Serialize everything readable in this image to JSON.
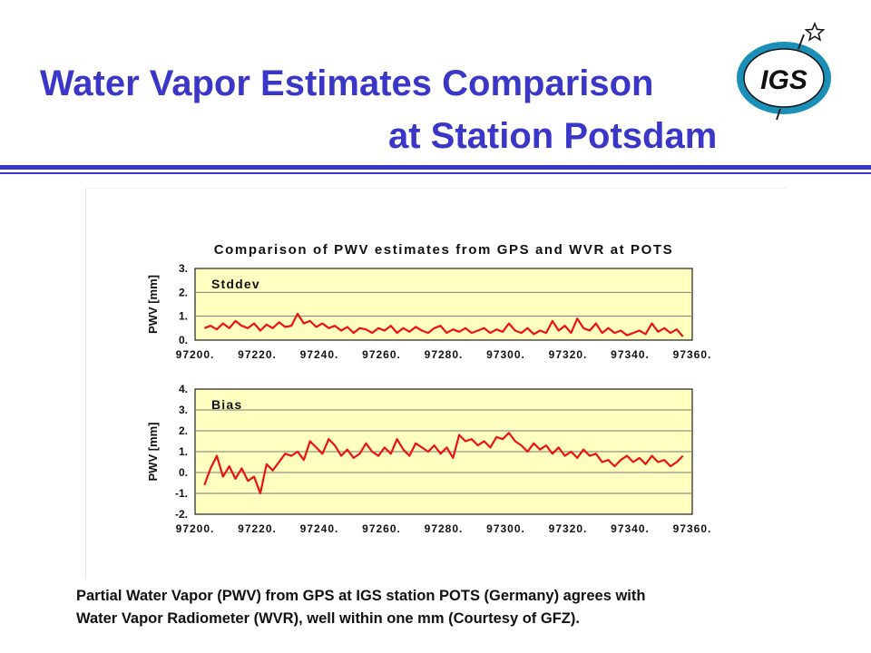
{
  "slide": {
    "title_line1": "Water Vapor Estimates Comparison",
    "title_line2": "at Station Potsdam",
    "logo_text": "IGS",
    "caption_line1": "Partial Water Vapor (PWV) from GPS at IGS station POTS (Germany) agrees with",
    "caption_line2": "Water Vapor Radiometer (WVR), well within one mm (Courtesy of GFZ)."
  },
  "colors": {
    "title": "#3a36c7",
    "plot_background": "#ffffc0",
    "series": "#ee1111",
    "gridline": "#7a7a7a"
  },
  "chart_data": [
    {
      "type": "line",
      "title": "Comparison of PWV estimates from GPS and WVR at POTS",
      "label": "Stddev",
      "xlabel": "",
      "ylabel": "PWV [mm]",
      "xlim": [
        97200,
        97360
      ],
      "ylim": [
        0,
        3
      ],
      "xticks": [
        "97200.",
        "97220.",
        "97240.",
        "97260.",
        "97280.",
        "97300.",
        "97320.",
        "97340.",
        "97360."
      ],
      "yticks": [
        "3.",
        "2.",
        "1.",
        "0."
      ],
      "grid": true,
      "series": [
        {
          "x": [
            97203,
            97205,
            97207,
            97209,
            97211,
            97213,
            97215,
            97217,
            97219,
            97221,
            97223,
            97225,
            97227,
            97229,
            97231,
            97233,
            97235,
            97237,
            97239,
            97241,
            97243,
            97245,
            97247,
            97249,
            97251,
            97253,
            97255,
            97257,
            97259,
            97261,
            97263,
            97265,
            97267,
            97269,
            97271,
            97273,
            97275,
            97277,
            97279,
            97281,
            97283,
            97285,
            97287,
            97289,
            97291,
            97293,
            97295,
            97297,
            97299,
            97301,
            97303,
            97305,
            97307,
            97309,
            97311,
            97313,
            97315,
            97317,
            97319,
            97321,
            97323,
            97325,
            97327,
            97329,
            97331,
            97333,
            97335,
            97337,
            97339,
            97341,
            97343,
            97345,
            97347,
            97349,
            97351,
            97353,
            97355,
            97357
          ],
          "y": [
            0.5,
            0.6,
            0.45,
            0.7,
            0.5,
            0.8,
            0.6,
            0.5,
            0.7,
            0.4,
            0.65,
            0.5,
            0.75,
            0.55,
            0.6,
            1.1,
            0.7,
            0.8,
            0.55,
            0.7,
            0.5,
            0.6,
            0.4,
            0.55,
            0.3,
            0.5,
            0.45,
            0.3,
            0.5,
            0.4,
            0.6,
            0.3,
            0.5,
            0.35,
            0.55,
            0.4,
            0.3,
            0.5,
            0.6,
            0.3,
            0.45,
            0.35,
            0.5,
            0.3,
            0.4,
            0.5,
            0.3,
            0.45,
            0.35,
            0.7,
            0.4,
            0.3,
            0.5,
            0.25,
            0.4,
            0.3,
            0.8,
            0.4,
            0.6,
            0.3,
            0.9,
            0.5,
            0.4,
            0.7,
            0.3,
            0.5,
            0.3,
            0.4,
            0.2,
            0.3,
            0.4,
            0.25,
            0.7,
            0.35,
            0.5,
            0.3,
            0.45,
            0.15
          ]
        }
      ]
    },
    {
      "type": "line",
      "label": "Bias",
      "xlabel": "",
      "ylabel": "PWV [mm]",
      "xlim": [
        97200,
        97360
      ],
      "ylim": [
        -2,
        4
      ],
      "xticks": [
        "97200.",
        "97220.",
        "97240.",
        "97260.",
        "97280.",
        "97300.",
        "97320.",
        "97340.",
        "97360."
      ],
      "yticks": [
        "4.",
        "3.",
        "2.",
        "1.",
        "0.",
        "-1.",
        "-2."
      ],
      "grid": true,
      "series": [
        {
          "x": [
            97203,
            97205,
            97207,
            97209,
            97211,
            97213,
            97215,
            97217,
            97219,
            97221,
            97223,
            97225,
            97227,
            97229,
            97231,
            97233,
            97235,
            97237,
            97239,
            97241,
            97243,
            97245,
            97247,
            97249,
            97251,
            97253,
            97255,
            97257,
            97259,
            97261,
            97263,
            97265,
            97267,
            97269,
            97271,
            97273,
            97275,
            97277,
            97279,
            97281,
            97283,
            97285,
            97287,
            97289,
            97291,
            97293,
            97295,
            97297,
            97299,
            97301,
            97303,
            97305,
            97307,
            97309,
            97311,
            97313,
            97315,
            97317,
            97319,
            97321,
            97323,
            97325,
            97327,
            97329,
            97331,
            97333,
            97335,
            97337,
            97339,
            97341,
            97343,
            97345,
            97347,
            97349,
            97351,
            97353,
            97355,
            97357
          ],
          "y": [
            -0.6,
            0.2,
            0.8,
            -0.2,
            0.3,
            -0.3,
            0.2,
            -0.4,
            -0.2,
            -1.0,
            0.4,
            0.1,
            0.5,
            0.9,
            0.8,
            1.0,
            0.6,
            1.5,
            1.2,
            0.9,
            1.6,
            1.3,
            0.8,
            1.1,
            0.7,
            0.9,
            1.4,
            1.0,
            0.8,
            1.2,
            0.9,
            1.6,
            1.1,
            0.8,
            1.4,
            1.2,
            1.0,
            1.3,
            0.9,
            1.2,
            0.7,
            1.8,
            1.5,
            1.6,
            1.3,
            1.5,
            1.2,
            1.7,
            1.6,
            1.9,
            1.5,
            1.3,
            1.0,
            1.4,
            1.1,
            1.3,
            0.9,
            1.2,
            0.8,
            1.0,
            0.7,
            1.1,
            0.8,
            0.9,
            0.5,
            0.6,
            0.3,
            0.6,
            0.8,
            0.5,
            0.7,
            0.4,
            0.8,
            0.5,
            0.6,
            0.3,
            0.5,
            0.8
          ]
        }
      ]
    }
  ]
}
